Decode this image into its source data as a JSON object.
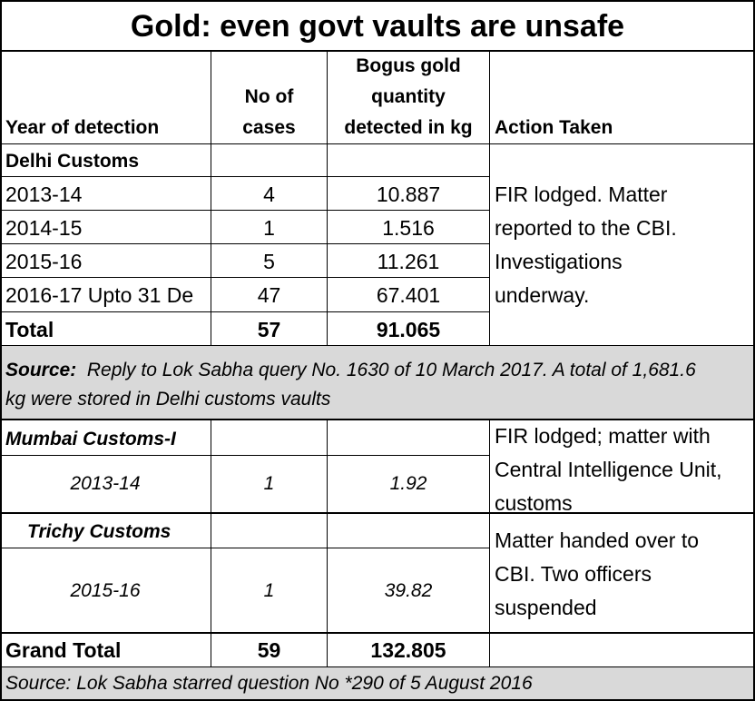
{
  "title": "Gold: even govt vaults are unsafe",
  "headers": {
    "year": "Year of detection",
    "cases_line1": "No of",
    "cases_line2": "cases",
    "qty_line1": "Bogus gold",
    "qty_line2": "quantity",
    "qty_line3": "detected in kg",
    "action": "Action Taken"
  },
  "delhi": {
    "label": "Delhi Customs",
    "rows": [
      {
        "year": "2013-14",
        "cases": "4",
        "qty": "10.887"
      },
      {
        "year": "2014-15",
        "cases": "1",
        "qty": "1.516"
      },
      {
        "year": "2015-16",
        "cases": "5",
        "qty": "11.261"
      },
      {
        "year": "2016-17 Upto 31 De",
        "cases": "47",
        "qty": "67.401"
      }
    ],
    "action_lines": [
      "FIR lodged. Matter",
      "reported to the CBI.",
      "Investigations",
      "underway."
    ],
    "total": {
      "label": "Total",
      "cases": "57",
      "qty": "91.065"
    },
    "source_label": "Source:",
    "source_text": "Reply to Lok Sabha query No. 1630 of 10 March 2017. A total of 1,681.6 kg were stored in Delhi customs vaults"
  },
  "mumbai": {
    "label": "Mumbai Customs-I",
    "year": "2013-14",
    "cases": "1",
    "qty": "1.92",
    "action_lines": [
      "FIR lodged; matter with",
      "Central Intelligence Unit,",
      "customs"
    ]
  },
  "trichy": {
    "label": "Trichy Customs",
    "year": "2015-16",
    "cases": "1",
    "qty": "39.82",
    "action_lines": [
      "Matter handed over to",
      "CBI. Two officers",
      "suspended"
    ]
  },
  "grand_total": {
    "label": "Grand Total",
    "cases": "59",
    "qty": "132.805"
  },
  "footer_source": "Source: Lok Sabha starred question No *290 of 5 August 2016"
}
